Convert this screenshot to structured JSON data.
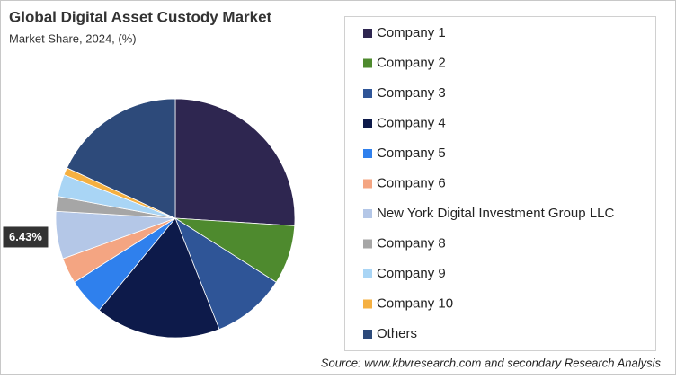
{
  "chart_data": {
    "type": "pie",
    "title": "Global Digital Asset Custody Market",
    "subtitle": "Market Share, 2024, (%)",
    "categories": [
      "Company 1",
      "Company 2",
      "Company 3",
      "Company 4",
      "Company 5",
      "Company 6",
      "New York Digital Investment Group LLC",
      "Company 8",
      "Company 9",
      "Company 10",
      "Others"
    ],
    "values": [
      26,
      8,
      10,
      17,
      5,
      3.5,
      6.43,
      2,
      3,
      1,
      18.07
    ],
    "value_labels": [
      null,
      null,
      null,
      null,
      null,
      null,
      "6.43%",
      null,
      null,
      null,
      null
    ],
    "colors": [
      "#2e2650",
      "#4e8a2e",
      "#2f5597",
      "#0d1a4a",
      "#2f80ed",
      "#f4a582",
      "#b4c7e7",
      "#a6a6a6",
      "#a9d5f5",
      "#f5b041",
      "#2d4a7a"
    ],
    "legend": "right",
    "source": "Source: www.kbvresearch.com and secondary Research Analysis"
  }
}
